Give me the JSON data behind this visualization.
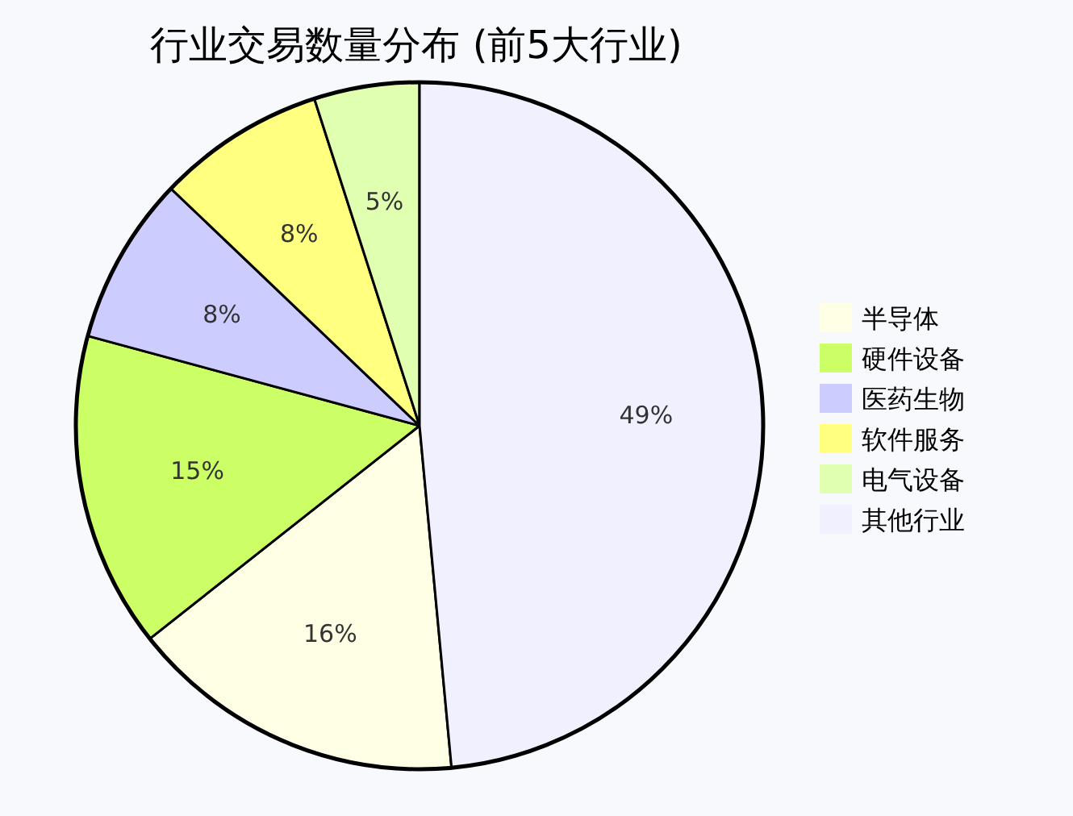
{
  "chart_data": {
    "type": "pie",
    "title": "行业交易数量分布 (前5大行业)",
    "categories": [
      "半导体",
      "硬件设备",
      "医药生物",
      "软件服务",
      "电气设备",
      "其他行业"
    ],
    "values": [
      16,
      15,
      8,
      8,
      5,
      49
    ],
    "colors": [
      "#ffffe6",
      "#ccff66",
      "#ccccff",
      "#ffff80",
      "#e0ffb0",
      "#f0f0ff"
    ],
    "value_labels": [
      "16%",
      "15%",
      "8%",
      "8%",
      "5%",
      "49%"
    ],
    "legend": "right"
  }
}
